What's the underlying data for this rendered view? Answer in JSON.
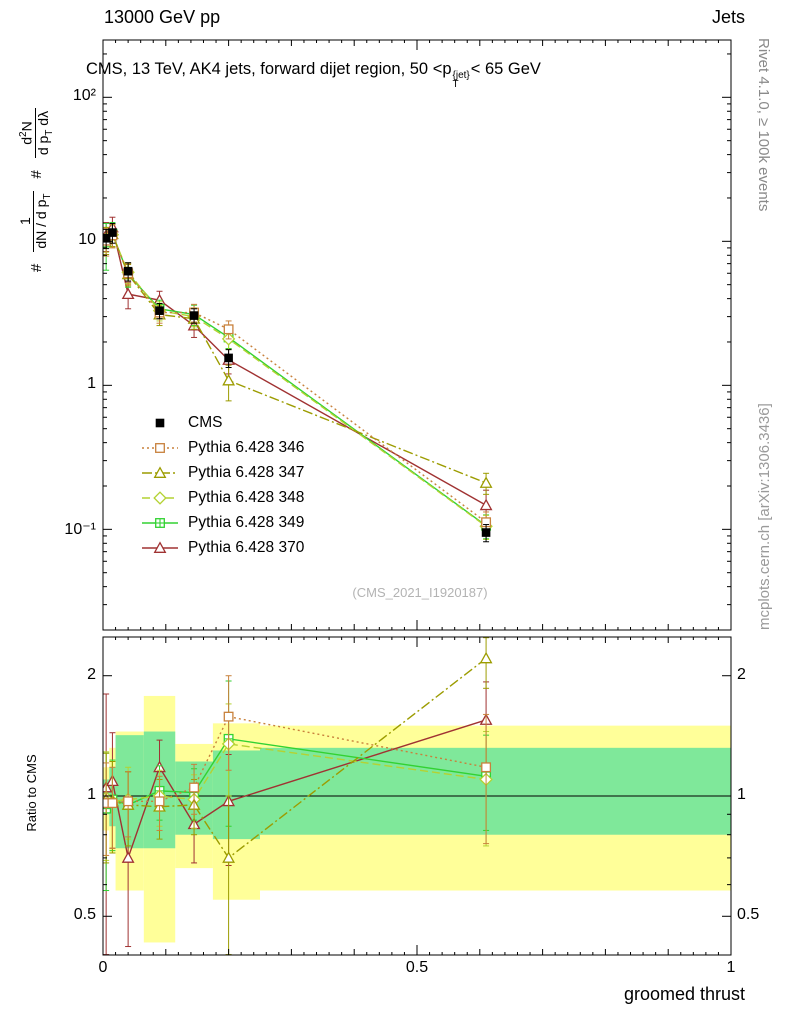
{
  "header": {
    "left": "13000 GeV pp",
    "right": "Jets"
  },
  "title": {
    "pre": "CMS, 13 TeV, AK4 jets, forward dijet region, 50 <p",
    "sup": "{jet}",
    "sub": "T",
    "post": "< 65 GeV"
  },
  "ylabel": {
    "hash1": "#",
    "f1_num": "1",
    "f1_den_main": "dN / d p",
    "f1_den_sub": "T",
    "hash2": "#",
    "f2_num_a": "d",
    "f2_num_sup": "2",
    "f2_num_b": "N",
    "f2_den_a": "d p",
    "f2_den_sub": "T",
    "f2_den_b": " dλ"
  },
  "right_labels": {
    "top": "Rivet 4.1.0, ≥ 100k events",
    "bottom": "mcplots.cern.ch [arXiv:1306.3436]"
  },
  "watermark": "(CMS_2021_I1920187)",
  "ratio_ylabel": "Ratio to CMS",
  "xlabel": "groomed thrust",
  "chart_data": {
    "type": "line",
    "x": [
      0.005,
      0.015,
      0.04,
      0.09,
      0.145,
      0.2,
      0.61
    ],
    "main": {
      "yscale": "log",
      "ylim": [
        0.02,
        250
      ],
      "yticks": [
        {
          "v": 100,
          "label": "10²"
        },
        {
          "v": 10,
          "label": "10"
        },
        {
          "v": 1,
          "label": "1"
        },
        {
          "v": 0.1,
          "label": "10⁻¹"
        }
      ]
    },
    "ratio": {
      "yscale": "log",
      "ylim": [
        0.4,
        2.5
      ],
      "yticks": [
        {
          "v": 2,
          "label": "2"
        },
        {
          "v": 1,
          "label": "1"
        },
        {
          "v": 0.5,
          "label": "0.5"
        }
      ]
    },
    "xticks": [
      {
        "v": 0,
        "label": "0"
      },
      {
        "v": 0.5,
        "label": "0.5"
      },
      {
        "v": 1,
        "label": "1"
      }
    ],
    "xlim": [
      0,
      1
    ],
    "series": [
      {
        "name": "CMS",
        "color": "#000000",
        "line": "none",
        "marker": "square-filled",
        "values": [
          10.5,
          11.5,
          6.2,
          3.3,
          3.05,
          1.55,
          0.095
        ],
        "errors": [
          1.6,
          1.8,
          0.9,
          0.4,
          0.35,
          0.22,
          0.013
        ]
      },
      {
        "name": "Pythia 6.428 346",
        "color": "#c8813c",
        "line": "dotted",
        "marker": "square-open",
        "values": [
          10.1,
          11.0,
          6.0,
          3.2,
          3.2,
          2.45,
          0.112
        ],
        "errors": [
          2.2,
          2.0,
          1.0,
          0.5,
          0.45,
          0.35,
          0.02
        ],
        "ratio": [
          0.96,
          0.96,
          0.97,
          0.97,
          1.05,
          1.58,
          1.18
        ],
        "ratio_err": [
          0.25,
          0.22,
          0.18,
          0.15,
          0.15,
          0.42,
          0.42
        ]
      },
      {
        "name": "Pythia 6.428 347",
        "color": "#9c9c00",
        "line": "dashdot",
        "marker": "triangle-open",
        "values": [
          10.3,
          11.2,
          5.9,
          3.1,
          2.9,
          1.08,
          0.21
        ],
        "errors": [
          2.2,
          2.0,
          1.0,
          0.5,
          0.45,
          0.3,
          0.035
        ],
        "ratio": [
          0.98,
          0.97,
          0.95,
          0.94,
          0.95,
          0.7,
          2.21
        ],
        "ratio_err": [
          0.3,
          0.25,
          0.2,
          0.16,
          0.15,
          0.3,
          0.35
        ]
      },
      {
        "name": "Pythia 6.428 348",
        "color": "#b4d232",
        "line": "dashed",
        "marker": "diamond-open",
        "values": [
          10.4,
          11.1,
          6.1,
          3.3,
          3.0,
          2.1,
          0.105
        ],
        "errors": [
          2.0,
          2.0,
          1.0,
          0.5,
          0.45,
          0.33,
          0.02
        ],
        "ratio": [
          0.99,
          0.97,
          0.98,
          1.0,
          0.98,
          1.35,
          1.1
        ],
        "ratio_err": [
          0.3,
          0.25,
          0.2,
          0.16,
          0.15,
          0.35,
          0.35
        ]
      },
      {
        "name": "Pythia 6.428 349",
        "color": "#32d232",
        "line": "solid",
        "marker": "square-cross-open",
        "values": [
          9.8,
          11.3,
          5.9,
          3.4,
          3.1,
          2.15,
          0.106
        ],
        "errors": [
          3.5,
          2.2,
          1.1,
          0.5,
          0.5,
          0.35,
          0.02
        ],
        "ratio": [
          0.93,
          0.98,
          0.95,
          1.03,
          1.02,
          1.39,
          1.12
        ],
        "ratio_err": [
          0.35,
          0.25,
          0.2,
          0.16,
          0.15,
          0.55,
          0.3
        ]
      },
      {
        "name": "Pythia 6.428 370",
        "color": "#a03232",
        "line": "solid",
        "marker": "triangle-open",
        "values": [
          11.0,
          12.5,
          4.3,
          3.9,
          2.6,
          1.5,
          0.147
        ],
        "errors": [
          2.5,
          2.2,
          0.9,
          0.6,
          0.45,
          0.3,
          0.04
        ],
        "ratio": [
          1.05,
          1.09,
          0.7,
          1.18,
          0.85,
          0.97,
          1.55
        ],
        "ratio_err": [
          0.75,
          0.35,
          0.28,
          0.2,
          0.17,
          0.3,
          0.38
        ]
      }
    ],
    "bands": {
      "edges": [
        0,
        0.01,
        0.02,
        0.065,
        0.115,
        0.175,
        0.25,
        1.0
      ],
      "yellow": [
        [
          0.82,
          1.18
        ],
        [
          0.72,
          1.32
        ],
        [
          0.58,
          1.45
        ],
        [
          0.43,
          1.78
        ],
        [
          0.66,
          1.35
        ],
        [
          0.55,
          1.52
        ],
        [
          0.58,
          1.5
        ]
      ],
      "green": [
        [
          0.9,
          1.1
        ],
        [
          0.84,
          1.18
        ],
        [
          0.74,
          1.42
        ],
        [
          0.74,
          1.45
        ],
        [
          0.8,
          1.22
        ],
        [
          0.78,
          1.3
        ],
        [
          0.8,
          1.32
        ]
      ],
      "yellow_color": "#ffff99",
      "green_color": "#7fe89a"
    }
  }
}
